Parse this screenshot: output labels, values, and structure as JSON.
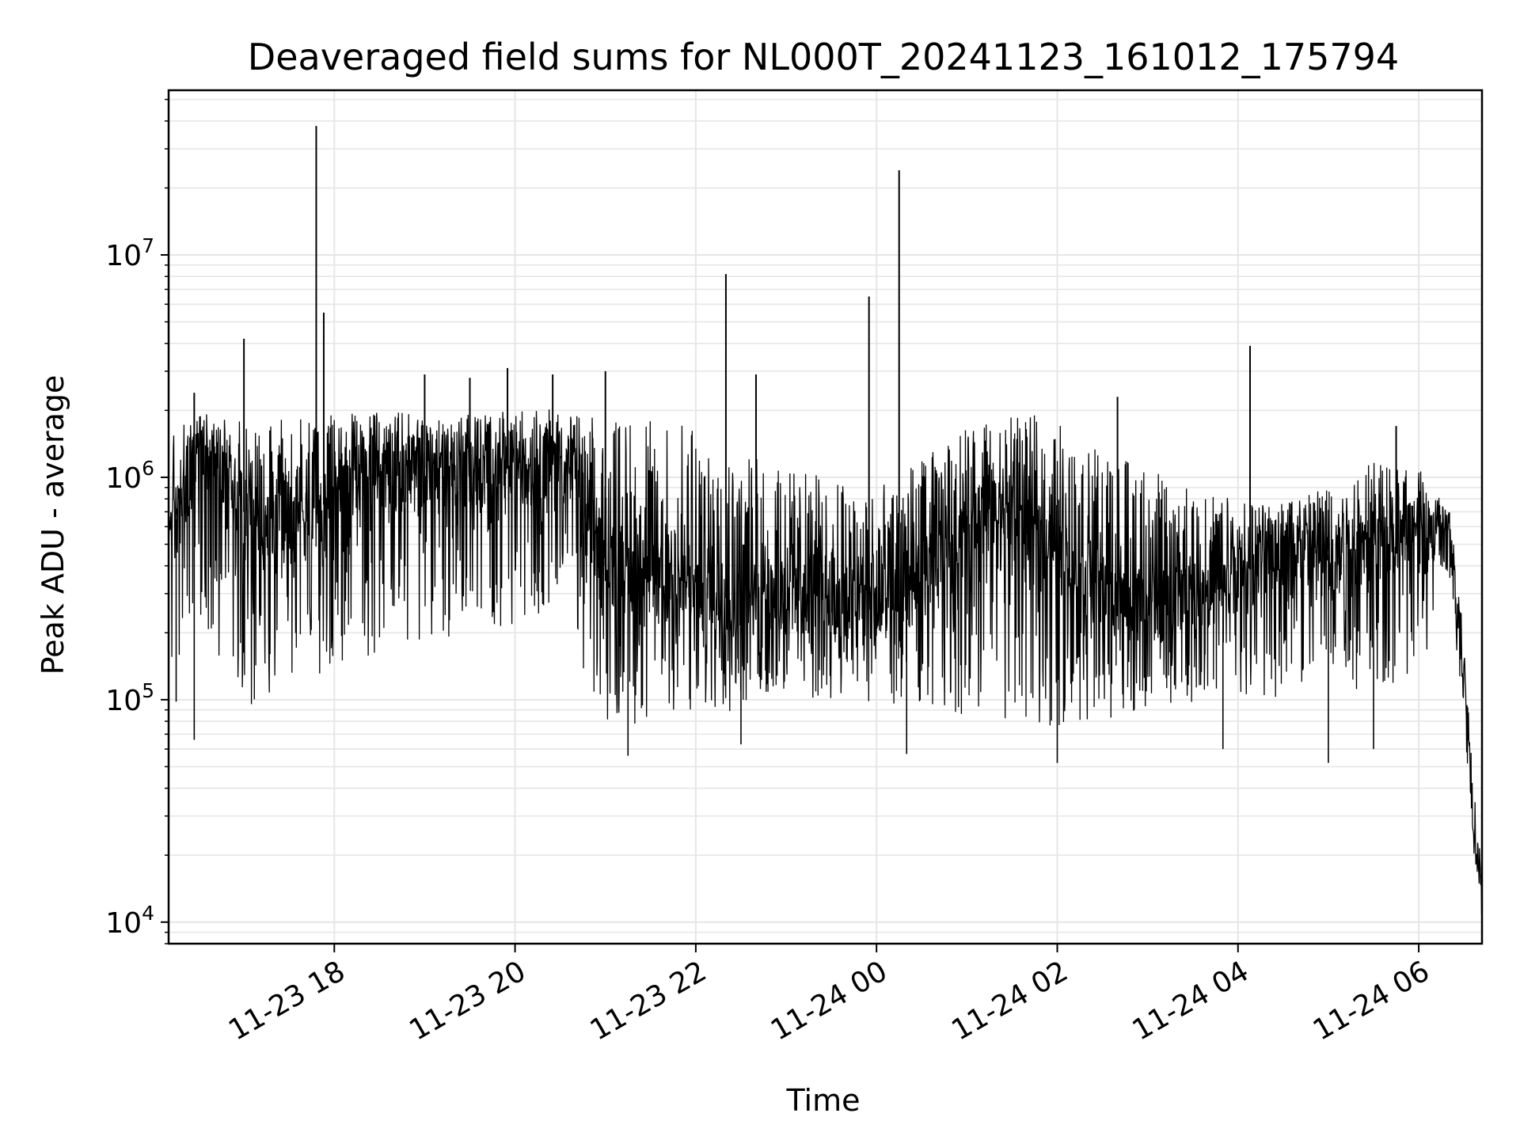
{
  "chart_data": {
    "type": "line",
    "title": "Deaveraged field sums for NL000T_20241123_161012_175794",
    "xlabel": "Time",
    "ylabel": "Peak ADU - average",
    "yscale": "log",
    "grid": true,
    "line_color": "#000000",
    "grid_color": "#e6e6e6",
    "xlim": [
      "2024-11-23 16:10",
      "2024-11-24 06:42"
    ],
    "ylim": [
      8000,
      55000000
    ],
    "x_ticks": [
      {
        "t": "2024-11-23 18:00",
        "label": "11-23 18"
      },
      {
        "t": "2024-11-23 20:00",
        "label": "11-23 20"
      },
      {
        "t": "2024-11-23 22:00",
        "label": "11-23 22"
      },
      {
        "t": "2024-11-24 00:00",
        "label": "11-24 00"
      },
      {
        "t": "2024-11-24 02:00",
        "label": "11-24 02"
      },
      {
        "t": "2024-11-24 04:00",
        "label": "11-24 04"
      },
      {
        "t": "2024-11-24 06:00",
        "label": "11-24 06"
      }
    ],
    "y_ticks": [
      {
        "value": 10000,
        "base": "10",
        "exp": "4"
      },
      {
        "value": 100000,
        "base": "10",
        "exp": "5"
      },
      {
        "value": 1000000,
        "base": "10",
        "exp": "6"
      },
      {
        "value": 10000000,
        "base": "10",
        "exp": "7"
      }
    ],
    "series": [
      {
        "x": [
          "2024-11-23 16:10",
          "2024-11-23 16:20",
          "2024-11-23 16:30",
          "2024-11-23 16:40",
          "2024-11-23 16:50",
          "2024-11-23 17:00",
          "2024-11-23 17:10",
          "2024-11-23 17:20",
          "2024-11-23 17:30",
          "2024-11-23 17:40",
          "2024-11-23 17:50",
          "2024-11-23 18:00",
          "2024-11-23 18:30",
          "2024-11-23 19:00",
          "2024-11-23 19:30",
          "2024-11-23 20:00",
          "2024-11-23 20:30",
          "2024-11-23 20:40",
          "2024-11-23 20:50",
          "2024-11-23 21:00",
          "2024-11-23 21:30",
          "2024-11-23 22:00",
          "2024-11-23 22:30",
          "2024-11-23 23:00",
          "2024-11-23 23:30",
          "2024-11-24 00:00",
          "2024-11-24 00:30",
          "2024-11-24 01:00",
          "2024-11-24 01:30",
          "2024-11-24 02:00",
          "2024-11-24 02:30",
          "2024-11-24 03:00",
          "2024-11-24 03:30",
          "2024-11-24 04:00",
          "2024-11-24 04:30",
          "2024-11-24 05:00",
          "2024-11-24 05:30",
          "2024-11-24 06:00",
          "2024-11-24 06:20",
          "2024-11-24 06:30",
          "2024-11-24 06:36",
          "2024-11-24 06:42"
        ],
        "y": [
          600000,
          700000,
          1300000,
          1200000,
          1000000,
          700000,
          500000,
          450000,
          500000,
          600000,
          700000,
          900000,
          1000000,
          1100000,
          1050000,
          1100000,
          1200000,
          1000000,
          500000,
          400000,
          350000,
          300000,
          280000,
          300000,
          280000,
          250000,
          350000,
          600000,
          700000,
          450000,
          300000,
          250000,
          300000,
          350000,
          500000,
          450000,
          500000,
          550000,
          550000,
          150000,
          30000,
          12000
        ],
        "y_low": [
          120000,
          150000,
          250000,
          180000,
          120000,
          100000,
          90000,
          90000,
          95000,
          120000,
          130000,
          140000,
          160000,
          180000,
          200000,
          220000,
          230000,
          200000,
          100000,
          80000,
          75000,
          85000,
          85000,
          95000,
          100000,
          95000,
          90000,
          85000,
          80000,
          75000,
          80000,
          90000,
          95000,
          95000,
          100000,
          110000,
          110000,
          120000,
          350000,
          80000,
          25000,
          10000
        ],
        "y_high": [
          1500000,
          1800000,
          2000000,
          1900000,
          1800000,
          1800000,
          1750000,
          1800000,
          1850000,
          1900000,
          1900000,
          1900000,
          2000000,
          2000000,
          1950000,
          2000000,
          2050000,
          1900000,
          1900000,
          1850000,
          1800000,
          1700000,
          1300000,
          1100000,
          1000000,
          900000,
          1200000,
          1700000,
          1900000,
          1900000,
          1300000,
          1100000,
          900000,
          800000,
          800000,
          1000000,
          1200000,
          1100000,
          700000,
          200000,
          45000,
          15000
        ],
        "spikes": [
          {
            "t": "2024-11-23 16:27",
            "y": 2400000
          },
          {
            "t": "2024-11-23 17:00",
            "y": 4200000
          },
          {
            "t": "2024-11-23 17:48",
            "y": 38000000
          },
          {
            "t": "2024-11-23 17:53",
            "y": 5500000
          },
          {
            "t": "2024-11-23 19:00",
            "y": 2900000
          },
          {
            "t": "2024-11-23 19:30",
            "y": 2800000
          },
          {
            "t": "2024-11-23 19:55",
            "y": 3100000
          },
          {
            "t": "2024-11-23 20:25",
            "y": 2900000
          },
          {
            "t": "2024-11-23 21:00",
            "y": 3000000
          },
          {
            "t": "2024-11-23 22:20",
            "y": 8200000
          },
          {
            "t": "2024-11-23 22:40",
            "y": 2900000
          },
          {
            "t": "2024-11-23 23:55",
            "y": 6500000
          },
          {
            "t": "2024-11-24 00:15",
            "y": 24000000
          },
          {
            "t": "2024-11-24 02:40",
            "y": 2300000
          },
          {
            "t": "2024-11-24 04:08",
            "y": 3900000
          },
          {
            "t": "2024-11-24 05:45",
            "y": 1700000
          }
        ],
        "dips": [
          {
            "t": "2024-11-23 16:15",
            "y": 98000
          },
          {
            "t": "2024-11-23 16:27",
            "y": 66000
          },
          {
            "t": "2024-11-23 21:15",
            "y": 56000
          },
          {
            "t": "2024-11-23 22:30",
            "y": 63000
          },
          {
            "t": "2024-11-24 00:20",
            "y": 57000
          },
          {
            "t": "2024-11-24 02:00",
            "y": 52000
          },
          {
            "t": "2024-11-24 03:50",
            "y": 60000
          },
          {
            "t": "2024-11-24 05:00",
            "y": 52000
          },
          {
            "t": "2024-11-24 05:30",
            "y": 60000
          }
        ]
      }
    ]
  }
}
